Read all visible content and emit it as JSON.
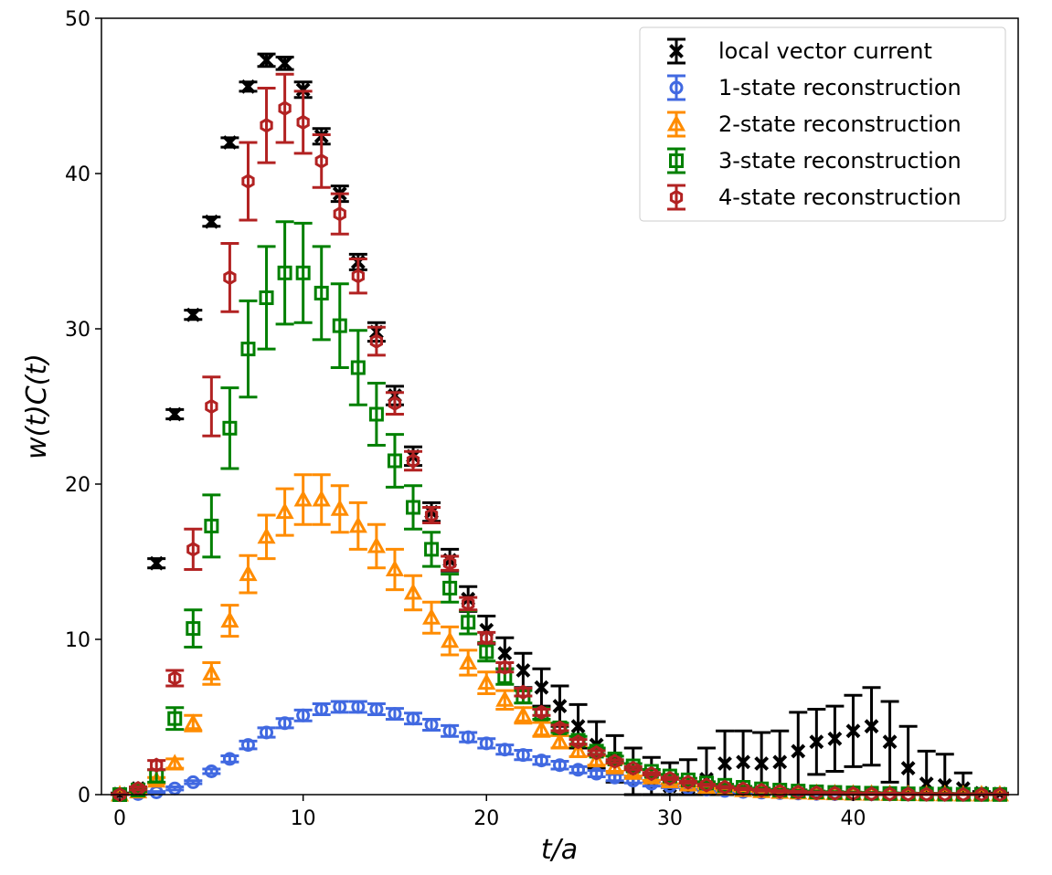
{
  "chart_data": {
    "type": "scatter",
    "xlabel": "t/a",
    "ylabel": "w(t)C(t)",
    "xlim": [
      -1,
      49
    ],
    "ylim": [
      0,
      50
    ],
    "x_ticks": [
      0,
      10,
      20,
      30,
      40
    ],
    "y_ticks": [
      0,
      10,
      20,
      30,
      40,
      50
    ],
    "grid": false,
    "legend_position": "top-right",
    "series": [
      {
        "name": "local vector current",
        "color": "#000000",
        "marker": "x",
        "x": [
          0,
          1,
          2,
          3,
          4,
          5,
          6,
          7,
          8,
          9,
          10,
          11,
          12,
          13,
          14,
          15,
          16,
          17,
          18,
          19,
          20,
          21,
          22,
          23,
          24,
          25,
          26,
          27,
          28,
          29,
          30,
          31,
          32,
          33,
          34,
          35,
          36,
          37,
          38,
          39,
          40,
          41,
          42,
          43,
          44,
          45,
          46,
          47,
          48
        ],
        "y": [
          0.05,
          0.4,
          14.9,
          24.5,
          30.9,
          36.9,
          42.0,
          45.6,
          47.3,
          47.1,
          45.4,
          42.4,
          38.7,
          34.3,
          29.8,
          25.7,
          21.8,
          18.2,
          15.1,
          12.6,
          10.6,
          9.1,
          8.0,
          6.9,
          5.7,
          4.4,
          3.2,
          2.3,
          1.5,
          0.9,
          0.55,
          0.45,
          1.0,
          2.0,
          2.1,
          2.0,
          2.1,
          2.8,
          3.4,
          3.6,
          4.1,
          4.4,
          3.4,
          1.7,
          0.7,
          0.6,
          0.4,
          0.1,
          0.05
        ],
        "err": [
          0.05,
          0.05,
          0.3,
          0.3,
          0.3,
          0.3,
          0.3,
          0.3,
          0.4,
          0.4,
          0.5,
          0.5,
          0.5,
          0.5,
          0.6,
          0.6,
          0.6,
          0.6,
          0.7,
          0.8,
          0.9,
          1.0,
          1.1,
          1.2,
          1.3,
          1.4,
          1.5,
          1.5,
          1.5,
          1.5,
          1.5,
          1.8,
          2.0,
          2.1,
          2.0,
          2.0,
          2.0,
          2.5,
          2.1,
          2.1,
          2.3,
          2.5,
          2.6,
          2.7,
          2.1,
          2.0,
          1.0,
          0.1,
          0.05
        ]
      },
      {
        "name": "1-state reconstruction",
        "color": "#4169e1",
        "marker": "o",
        "x": [
          0,
          1,
          2,
          3,
          4,
          5,
          6,
          7,
          8,
          9,
          10,
          11,
          12,
          13,
          14,
          15,
          16,
          17,
          18,
          19,
          20,
          21,
          22,
          23,
          24,
          25,
          26,
          27,
          28,
          29,
          30,
          31,
          32,
          33,
          34,
          35,
          36,
          37,
          38,
          39,
          40,
          41,
          42,
          43,
          44,
          45,
          46,
          47,
          48
        ],
        "y": [
          0.0,
          0.04,
          0.15,
          0.4,
          0.8,
          1.5,
          2.3,
          3.2,
          4.0,
          4.6,
          5.1,
          5.5,
          5.65,
          5.65,
          5.5,
          5.2,
          4.9,
          4.5,
          4.1,
          3.7,
          3.3,
          2.9,
          2.55,
          2.2,
          1.9,
          1.6,
          1.35,
          1.1,
          0.9,
          0.7,
          0.55,
          0.42,
          0.32,
          0.24,
          0.18,
          0.13,
          0.1,
          0.07,
          0.05,
          0.035,
          0.025,
          0.018,
          0.012,
          0.008,
          0.005,
          0.003,
          0.002,
          0.001,
          0.0005
        ],
        "err": [
          0.05,
          0.05,
          0.05,
          0.1,
          0.1,
          0.15,
          0.2,
          0.25,
          0.3,
          0.3,
          0.35,
          0.35,
          0.35,
          0.35,
          0.35,
          0.35,
          0.35,
          0.35,
          0.35,
          0.3,
          0.3,
          0.3,
          0.3,
          0.25,
          0.25,
          0.2,
          0.2,
          0.2,
          0.15,
          0.15,
          0.1,
          0.1,
          0.1,
          0.1,
          0.1,
          0.05,
          0.05,
          0.05,
          0.05,
          0.05,
          0.05,
          0.05,
          0.05,
          0.05,
          0.05,
          0.05,
          0.05,
          0.05,
          0.05
        ]
      },
      {
        "name": "2-state reconstruction",
        "color": "#ff8c00",
        "marker": "^",
        "x": [
          0,
          1,
          2,
          3,
          4,
          5,
          6,
          7,
          8,
          9,
          10,
          11,
          12,
          13,
          14,
          15,
          16,
          17,
          18,
          19,
          20,
          21,
          22,
          23,
          24,
          25,
          26,
          27,
          28,
          29,
          30,
          31,
          32,
          33,
          34,
          35,
          36,
          37,
          38,
          39,
          40,
          41,
          42,
          43,
          44,
          45,
          46,
          47,
          48
        ],
        "y": [
          0.0,
          0.2,
          0.9,
          2.0,
          4.6,
          7.8,
          11.2,
          14.2,
          16.6,
          18.2,
          19.0,
          19.0,
          18.4,
          17.3,
          16.0,
          14.5,
          13.0,
          11.4,
          9.9,
          8.5,
          7.2,
          6.1,
          5.1,
          4.2,
          3.4,
          2.8,
          2.2,
          1.75,
          1.4,
          1.1,
          0.85,
          0.65,
          0.5,
          0.38,
          0.29,
          0.22,
          0.17,
          0.13,
          0.1,
          0.08,
          0.06,
          0.05,
          0.04,
          0.03,
          0.02,
          0.015,
          0.01,
          0.008,
          0.005
        ],
        "err": [
          0.05,
          0.1,
          0.2,
          0.3,
          0.5,
          0.7,
          1.0,
          1.2,
          1.4,
          1.5,
          1.6,
          1.6,
          1.5,
          1.5,
          1.4,
          1.3,
          1.1,
          1.0,
          0.9,
          0.8,
          0.7,
          0.6,
          0.5,
          0.45,
          0.4,
          0.35,
          0.3,
          0.25,
          0.2,
          0.18,
          0.15,
          0.12,
          0.1,
          0.1,
          0.08,
          0.06,
          0.05,
          0.05,
          0.05,
          0.05,
          0.05,
          0.05,
          0.05,
          0.05,
          0.05,
          0.05,
          0.05,
          0.05,
          0.05
        ]
      },
      {
        "name": "3-state reconstruction",
        "color": "#008000",
        "marker": "s",
        "x": [
          0,
          1,
          2,
          3,
          4,
          5,
          6,
          7,
          8,
          9,
          10,
          11,
          12,
          13,
          14,
          15,
          16,
          17,
          18,
          19,
          20,
          21,
          22,
          23,
          24,
          25,
          26,
          27,
          28,
          29,
          30,
          31,
          32,
          33,
          34,
          35,
          36,
          37,
          38,
          39,
          40,
          41,
          42,
          43,
          44,
          45,
          46,
          47,
          48
        ],
        "y": [
          0.0,
          0.3,
          1.2,
          4.9,
          10.7,
          17.3,
          23.6,
          28.7,
          32.0,
          33.6,
          33.6,
          32.3,
          30.2,
          27.5,
          24.5,
          21.5,
          18.5,
          15.8,
          13.3,
          11.1,
          9.2,
          7.6,
          6.3,
          5.2,
          4.3,
          3.5,
          2.8,
          2.3,
          1.85,
          1.5,
          1.2,
          0.95,
          0.75,
          0.6,
          0.47,
          0.37,
          0.29,
          0.23,
          0.18,
          0.14,
          0.11,
          0.09,
          0.07,
          0.05,
          0.04,
          0.03,
          0.02,
          0.015,
          0.01
        ],
        "err": [
          0.05,
          0.1,
          0.4,
          0.7,
          1.2,
          2.0,
          2.6,
          3.1,
          3.3,
          3.3,
          3.2,
          3.0,
          2.7,
          2.4,
          2.0,
          1.7,
          1.4,
          1.1,
          0.9,
          0.75,
          0.6,
          0.5,
          0.4,
          0.35,
          0.3,
          0.25,
          0.2,
          0.18,
          0.15,
          0.12,
          0.1,
          0.1,
          0.08,
          0.07,
          0.06,
          0.05,
          0.05,
          0.05,
          0.05,
          0.05,
          0.05,
          0.05,
          0.05,
          0.05,
          0.05,
          0.05,
          0.05,
          0.05,
          0.05
        ]
      },
      {
        "name": "4-state reconstruction",
        "color": "#b22222",
        "marker": "h",
        "x": [
          0,
          1,
          2,
          3,
          4,
          5,
          6,
          7,
          8,
          9,
          10,
          11,
          12,
          13,
          14,
          15,
          16,
          17,
          18,
          19,
          20,
          21,
          22,
          23,
          24,
          25,
          26,
          27,
          28,
          29,
          30,
          31,
          32,
          33,
          34,
          35,
          36,
          37,
          38,
          39,
          40,
          41,
          42,
          43,
          44,
          45,
          46,
          47,
          48
        ],
        "y": [
          0.0,
          0.4,
          1.9,
          7.5,
          15.8,
          25.0,
          33.3,
          39.5,
          43.1,
          44.2,
          43.3,
          40.8,
          37.4,
          33.4,
          29.2,
          25.2,
          21.5,
          18.0,
          14.9,
          12.3,
          10.1,
          8.2,
          6.6,
          5.3,
          4.3,
          3.4,
          2.7,
          2.15,
          1.7,
          1.35,
          1.05,
          0.8,
          0.62,
          0.48,
          0.37,
          0.28,
          0.21,
          0.16,
          0.12,
          0.09,
          0.07,
          0.05,
          0.04,
          0.03,
          0.02,
          0.015,
          0.01,
          0.008,
          0.005
        ],
        "err": [
          0.05,
          0.1,
          0.3,
          0.5,
          1.3,
          1.9,
          2.2,
          2.5,
          2.4,
          2.2,
          2.0,
          1.7,
          1.3,
          1.1,
          0.9,
          0.7,
          0.6,
          0.5,
          0.45,
          0.4,
          0.35,
          0.3,
          0.25,
          0.2,
          0.18,
          0.15,
          0.12,
          0.1,
          0.1,
          0.08,
          0.07,
          0.06,
          0.05,
          0.05,
          0.05,
          0.05,
          0.05,
          0.05,
          0.05,
          0.05,
          0.05,
          0.05,
          0.05,
          0.05,
          0.05,
          0.05,
          0.05,
          0.05,
          0.05
        ]
      }
    ]
  }
}
